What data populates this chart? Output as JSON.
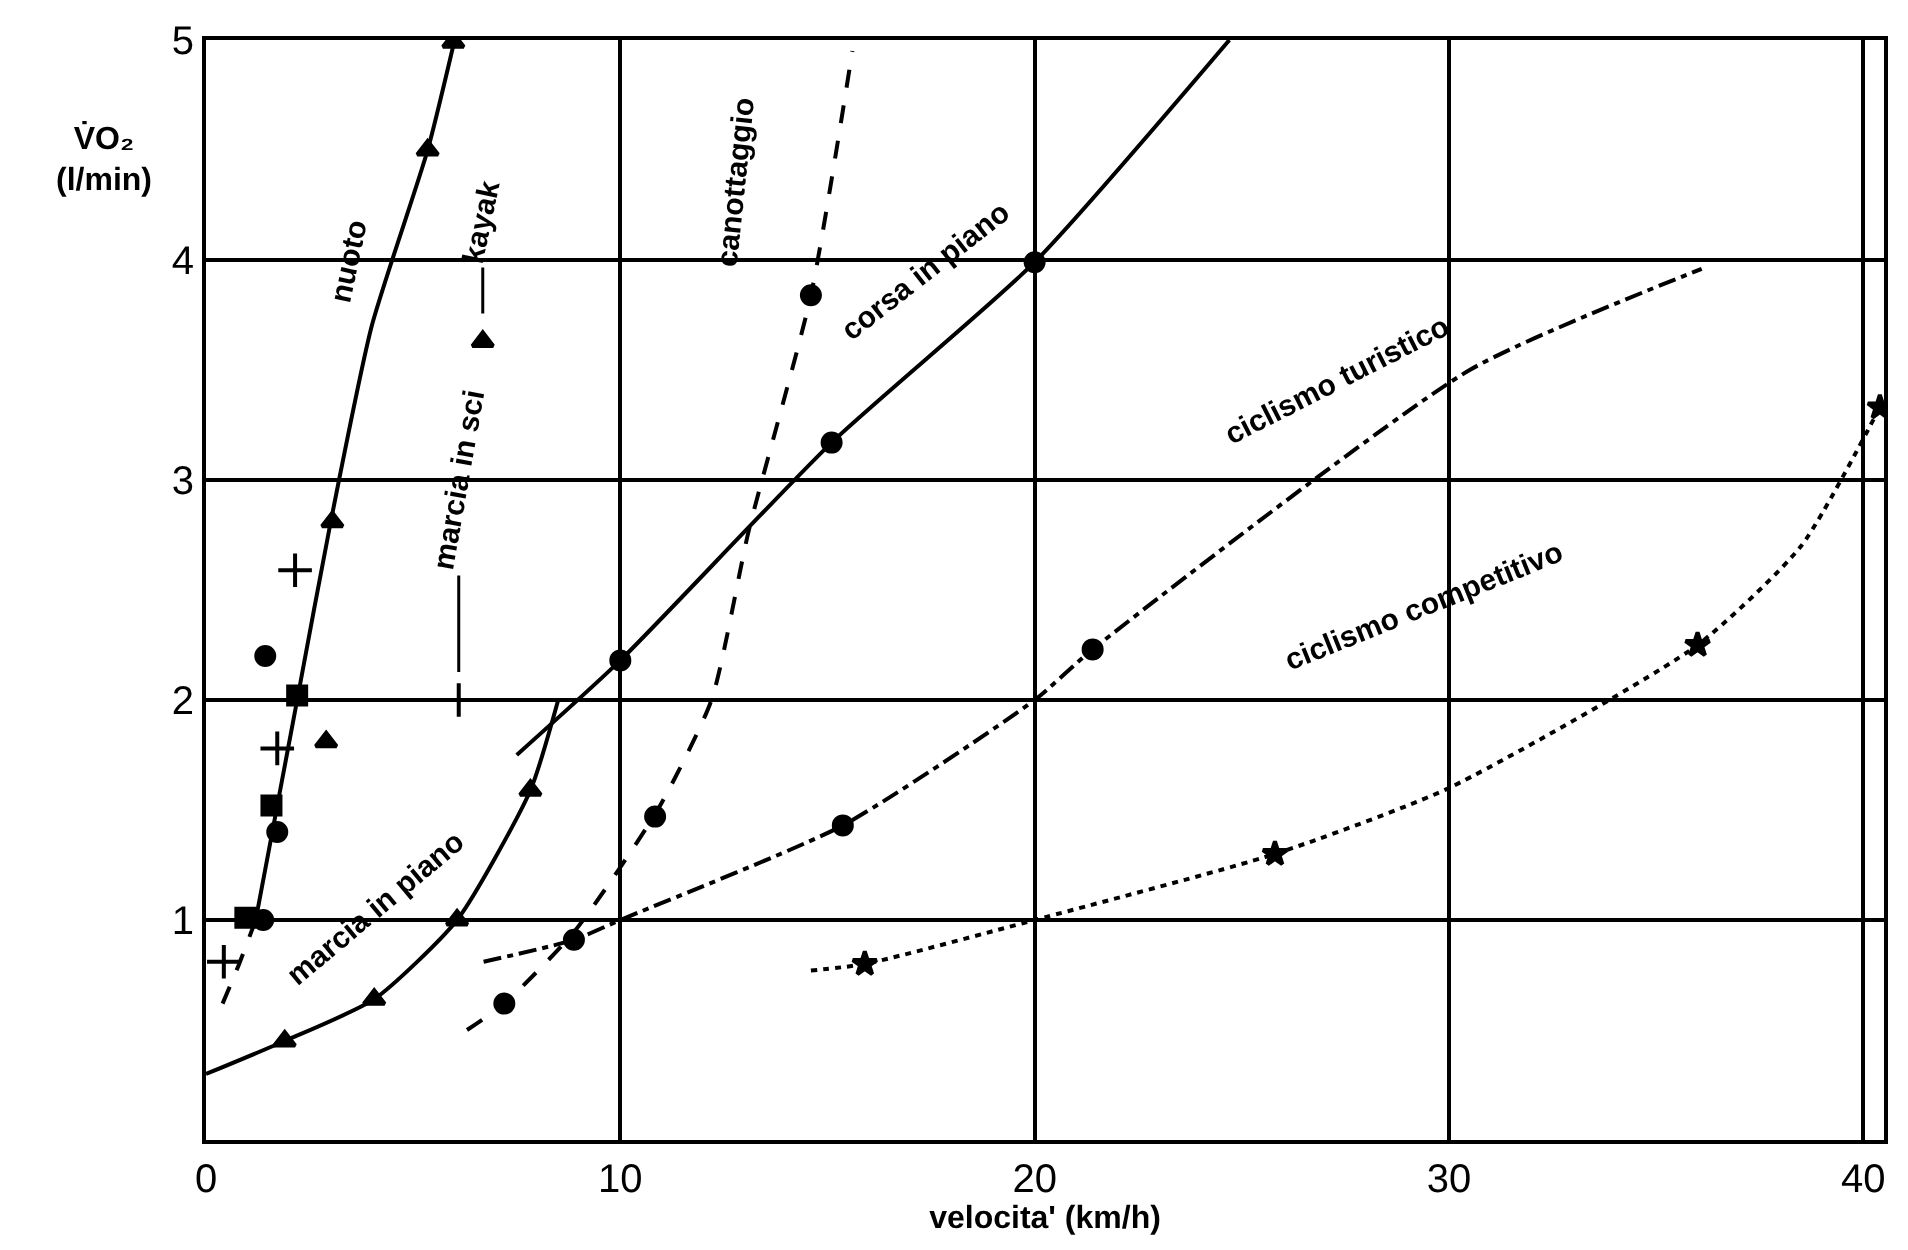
{
  "chart_data": {
    "type": "line",
    "xlabel": "velocita' (km/h)",
    "ylabel": "V̇O₂\n(l/min)",
    "xlim": [
      0,
      40.5
    ],
    "ylim": [
      0,
      5
    ],
    "xticks": [
      0,
      10,
      20,
      30,
      40
    ],
    "yticks": [
      1,
      2,
      3,
      4,
      5
    ],
    "grid": true,
    "series": [
      {
        "line_style": "dashed",
        "marker": "none",
        "color": "#000000",
        "x": [
          0.4,
          0.8,
          1.2
        ],
        "values": [
          0.62,
          0.8,
          1.0
        ]
      },
      {
        "line_style": "solid",
        "marker": "none",
        "color": "#000000",
        "x": [
          1.2,
          1.7,
          2.2,
          3.0,
          4.0,
          5.35,
          6.0
        ],
        "values": [
          1.0,
          1.5,
          2.0,
          2.8,
          3.7,
          4.5,
          5.0
        ]
      },
      {
        "type": "scatter",
        "marker": "triangle",
        "color": "#000000",
        "x": [
          2.9,
          3.05,
          5.35,
          5.97
        ],
        "values": [
          1.81,
          2.81,
          4.5,
          4.99
        ]
      },
      {
        "type": "scatter",
        "marker": "square",
        "color": "#000000",
        "x": [
          0.95,
          1.58,
          2.2
        ],
        "values": [
          1.01,
          1.52,
          2.02
        ]
      },
      {
        "type": "scatter",
        "marker": "circle",
        "color": "#000000",
        "x": [
          1.38,
          1.72,
          1.43
        ],
        "values": [
          1.0,
          1.4,
          2.2
        ]
      },
      {
        "type": "scatter",
        "marker": "cross",
        "color": "#000000",
        "x": [
          0.43,
          1.72,
          2.15
        ],
        "values": [
          0.81,
          1.78,
          2.59
        ]
      },
      {
        "type": "scatter",
        "marker": "triangle",
        "color": "#000000",
        "x": [
          6.68
        ],
        "values": [
          3.63
        ]
      },
      {
        "type": "scatter",
        "marker": "cross",
        "color": "#000000",
        "x": [
          6.1
        ],
        "values": [
          2.0
        ]
      },
      {
        "line_style": "solid",
        "marker": "none",
        "color": "#000000",
        "x": [
          0,
          1.9,
          4.06,
          6.06,
          7.83,
          8.5
        ],
        "values": [
          0.3,
          0.45,
          0.64,
          1.0,
          1.59,
          2.0
        ]
      },
      {
        "type": "scatter",
        "marker": "triangle",
        "color": "#000000",
        "x": [
          1.9,
          4.06,
          6.06,
          7.83
        ],
        "values": [
          0.45,
          0.64,
          1.0,
          1.59
        ]
      },
      {
        "line_style": "solid",
        "marker": "none",
        "color": "#000000",
        "x": [
          7.5,
          10.0,
          15.1,
          20.0,
          24.7
        ],
        "values": [
          1.75,
          2.18,
          3.17,
          3.99,
          5.0
        ]
      },
      {
        "type": "scatter",
        "marker": "circle",
        "color": "#000000",
        "x": [
          10.0,
          15.1,
          20.0
        ],
        "values": [
          2.18,
          3.17,
          3.99
        ]
      },
      {
        "line_style": "dashed",
        "marker": "none",
        "color": "#000000",
        "x": [
          6.3,
          7.2,
          8.9,
          10.9,
          12.2,
          13.1,
          14.6,
          15.6
        ],
        "values": [
          0.5,
          0.62,
          0.95,
          1.5,
          2.0,
          2.77,
          3.84,
          4.95
        ]
      },
      {
        "type": "scatter",
        "marker": "circle",
        "color": "#000000",
        "x": [
          7.2,
          10.84,
          14.6
        ],
        "values": [
          0.62,
          1.47,
          3.84
        ]
      },
      {
        "line_style": "dashdot",
        "marker": "none",
        "color": "#000000",
        "x": [
          6.7,
          8.88,
          10.0,
          15.37,
          20.0,
          21.4,
          30.5,
          36.1
        ],
        "values": [
          0.81,
          0.91,
          1.0,
          1.43,
          2.0,
          2.23,
          3.5,
          3.96
        ]
      },
      {
        "type": "scatter",
        "marker": "circle",
        "color": "#000000",
        "x": [
          8.88,
          15.37,
          21.4
        ],
        "values": [
          0.91,
          1.43,
          2.23
        ]
      },
      {
        "line_style": "dotted",
        "marker": "none",
        "color": "#000000",
        "x": [
          14.6,
          15.9,
          20.0,
          25.8,
          30.0,
          36.0,
          38.5,
          40.4
        ],
        "values": [
          0.77,
          0.8,
          1.0,
          1.3,
          1.6,
          2.25,
          2.7,
          3.33
        ]
      },
      {
        "type": "scatter",
        "marker": "star",
        "color": "#000000",
        "x": [
          15.9,
          25.8,
          36.0,
          40.4
        ],
        "values": [
          0.8,
          1.3,
          2.25,
          3.33
        ]
      }
    ],
    "annotations": [
      "nuoto",
      {
        "text": "marcia in sci",
        "x": 6.1,
        "y": 2.0
      },
      {
        "text": "kayak",
        "x": 6.68,
        "y": 3.63
      },
      "canottaggio",
      "corsa in piano",
      "ciclismo turistico",
      "ciclismo competitivo",
      "marcia in piano"
    ]
  }
}
